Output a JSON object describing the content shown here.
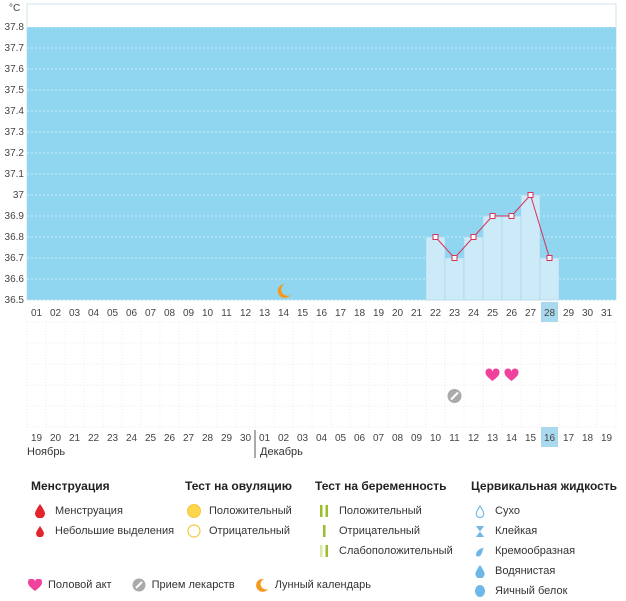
{
  "chart_data": {
    "type": "line",
    "ylabel": "°C",
    "ylim": [
      36.5,
      37.8
    ],
    "yticks": [
      "36.5",
      "36.6",
      "36.7",
      "36.8",
      "36.9",
      "37",
      "37.1",
      "37.2",
      "37.3",
      "37.4",
      "37.5",
      "37.6",
      "37.7",
      "37.8"
    ],
    "cycle_days": [
      "01",
      "02",
      "03",
      "04",
      "05",
      "06",
      "07",
      "08",
      "09",
      "10",
      "11",
      "12",
      "13",
      "14",
      "15",
      "16",
      "17",
      "18",
      "19",
      "20",
      "21",
      "22",
      "23",
      "24",
      "25",
      "26",
      "27",
      "28",
      "29",
      "30",
      "31"
    ],
    "calendar_days": [
      "19",
      "20",
      "21",
      "22",
      "23",
      "24",
      "25",
      "26",
      "27",
      "28",
      "29",
      "30",
      "01",
      "02",
      "03",
      "04",
      "05",
      "06",
      "07",
      "08",
      "09",
      "10",
      "11",
      "12",
      "13",
      "14",
      "15",
      "16",
      "17",
      "18",
      "19"
    ],
    "calendar_weekend": [
      false,
      false,
      true,
      true,
      false,
      false,
      false,
      false,
      false,
      true,
      true,
      false,
      false,
      false,
      false,
      false,
      true,
      true,
      false,
      false,
      false,
      false,
      false,
      true,
      true,
      false,
      false,
      false,
      false,
      false,
      true
    ],
    "highlight_index": 27,
    "series": [
      {
        "x": [
          "22",
          "23",
          "24",
          "25",
          "26",
          "27",
          "28"
        ],
        "y": [
          36.8,
          36.7,
          36.8,
          36.9,
          36.9,
          37.0,
          36.7
        ]
      }
    ],
    "events": {
      "moon_day": "14",
      "medication_day": "23",
      "intercourse_days": [
        "25",
        "26"
      ]
    },
    "months": [
      "Ноябрь",
      "Декабрь"
    ],
    "month_split_index": 12
  },
  "colors": {
    "plot_bg": "#91d6f0",
    "bar_fill": "#cdeaf8",
    "line": "#d4335a",
    "highlight": "#a9d9ef",
    "weekend": "#d6003d",
    "heart": "#f0429d",
    "moon": "#f39a1f",
    "drop_red": "#e2242c",
    "drop_blue": "#6eb7e6",
    "ovu_pos": "#ffd54a",
    "ovu_neg": "#f4c842",
    "preg": "#9bbe2c",
    "pill": "#999999"
  },
  "legend": {
    "menstruation": {
      "title": "Менструация",
      "items": [
        "Менструация",
        "Небольшие выделения"
      ]
    },
    "ovulation": {
      "title": "Тест на овуляцию",
      "items": [
        "Положительный",
        "Отрицательный"
      ]
    },
    "pregnancy": {
      "title": "Тест на беременность",
      "items": [
        "Положительный",
        "Отрицательный",
        "Слабоположительный"
      ]
    },
    "cervical": {
      "title": "Цервикальная жидкость",
      "items": [
        "Сухо",
        "Клейкая",
        "Кремообразная",
        "Водянистая",
        "Яичный белок"
      ]
    },
    "bottom": [
      "Половой акт",
      "Прием лекарств",
      "Лунный календарь"
    ]
  }
}
